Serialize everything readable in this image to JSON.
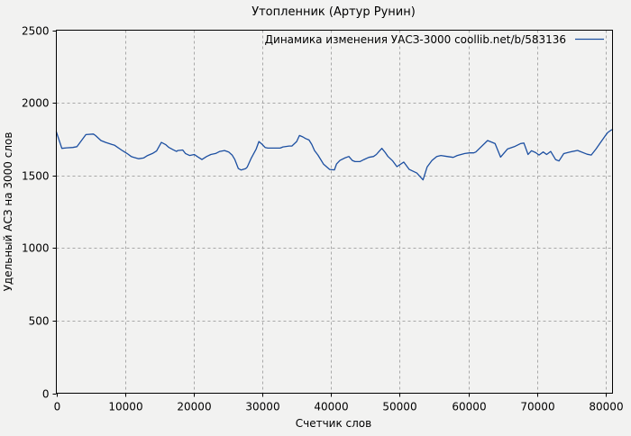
{
  "title": "Утопленник (Артур Рунин)",
  "legend": {
    "label": "Динамика изменения УАСЗ-3000 coollib.net/b/583136",
    "position": "top-right"
  },
  "colors": {
    "line": "#1c4fa1",
    "background": "#f2f2f1",
    "plot_border": "#000000",
    "grid": "#a8a8a8",
    "text": "#000000"
  },
  "chart_data": {
    "type": "line",
    "title": "Утопленник (Артур Рунин)",
    "xlabel": "Счетчик слов",
    "ylabel": "Удельный АСЗ на 3000 слов",
    "xlim": [
      0,
      81000
    ],
    "ylim": [
      0,
      2500
    ],
    "xticks": [
      0,
      10000,
      20000,
      30000,
      40000,
      50000,
      60000,
      70000,
      80000
    ],
    "yticks": [
      0,
      500,
      1000,
      1500,
      2000,
      2500
    ],
    "grid": true,
    "legend_position": "top-right",
    "series": [
      {
        "name": "Динамика изменения УАСЗ-3000 coollib.net/b/583136",
        "color": "#1c4fa1",
        "points": [
          [
            0,
            1800
          ],
          [
            800,
            1686
          ],
          [
            1500,
            1690
          ],
          [
            2400,
            1692
          ],
          [
            3000,
            1698
          ],
          [
            4300,
            1781
          ],
          [
            5400,
            1785
          ],
          [
            5700,
            1775
          ],
          [
            6500,
            1740
          ],
          [
            7200,
            1727
          ],
          [
            8100,
            1713
          ],
          [
            8500,
            1707
          ],
          [
            9600,
            1671
          ],
          [
            10300,
            1651
          ],
          [
            10900,
            1630
          ],
          [
            11300,
            1624
          ],
          [
            12000,
            1615
          ],
          [
            12700,
            1620
          ],
          [
            13300,
            1637
          ],
          [
            14000,
            1651
          ],
          [
            14600,
            1668
          ],
          [
            15300,
            1727
          ],
          [
            15900,
            1713
          ],
          [
            16400,
            1692
          ],
          [
            17000,
            1677
          ],
          [
            17500,
            1665
          ],
          [
            17700,
            1671
          ],
          [
            18400,
            1675
          ],
          [
            18800,
            1651
          ],
          [
            19400,
            1637
          ],
          [
            20100,
            1644
          ],
          [
            20500,
            1630
          ],
          [
            21200,
            1609
          ],
          [
            21900,
            1630
          ],
          [
            22500,
            1644
          ],
          [
            23200,
            1651
          ],
          [
            23800,
            1665
          ],
          [
            24500,
            1671
          ],
          [
            25100,
            1661
          ],
          [
            25600,
            1640
          ],
          [
            26000,
            1609
          ],
          [
            26500,
            1547
          ],
          [
            26900,
            1537
          ],
          [
            27600,
            1547
          ],
          [
            27800,
            1558
          ],
          [
            28400,
            1620
          ],
          [
            29100,
            1682
          ],
          [
            29500,
            1733
          ],
          [
            30000,
            1713
          ],
          [
            30400,
            1692
          ],
          [
            30800,
            1688
          ],
          [
            32600,
            1688
          ],
          [
            33000,
            1696
          ],
          [
            33900,
            1702
          ],
          [
            34300,
            1702
          ],
          [
            35000,
            1733
          ],
          [
            35400,
            1775
          ],
          [
            35900,
            1765
          ],
          [
            36300,
            1754
          ],
          [
            36800,
            1744
          ],
          [
            37200,
            1713
          ],
          [
            37600,
            1671
          ],
          [
            38100,
            1640
          ],
          [
            38500,
            1609
          ],
          [
            38900,
            1578
          ],
          [
            39800,
            1541
          ],
          [
            40500,
            1538
          ],
          [
            40800,
            1578
          ],
          [
            41300,
            1603
          ],
          [
            42000,
            1620
          ],
          [
            42600,
            1630
          ],
          [
            43100,
            1603
          ],
          [
            43500,
            1595
          ],
          [
            44200,
            1595
          ],
          [
            44800,
            1609
          ],
          [
            45500,
            1624
          ],
          [
            46200,
            1630
          ],
          [
            46600,
            1644
          ],
          [
            47000,
            1665
          ],
          [
            47400,
            1686
          ],
          [
            47900,
            1657
          ],
          [
            48300,
            1630
          ],
          [
            49000,
            1599
          ],
          [
            49600,
            1560
          ],
          [
            50600,
            1592
          ],
          [
            51400,
            1541
          ],
          [
            52500,
            1516
          ],
          [
            53400,
            1469
          ],
          [
            54000,
            1558
          ],
          [
            54700,
            1603
          ],
          [
            55400,
            1630
          ],
          [
            56000,
            1637
          ],
          [
            56900,
            1630
          ],
          [
            57800,
            1624
          ],
          [
            58400,
            1637
          ],
          [
            59500,
            1651
          ],
          [
            60200,
            1655
          ],
          [
            60800,
            1655
          ],
          [
            61100,
            1661
          ],
          [
            62800,
            1740
          ],
          [
            63500,
            1727
          ],
          [
            63900,
            1719
          ],
          [
            64700,
            1626
          ],
          [
            65700,
            1682
          ],
          [
            66700,
            1698
          ],
          [
            67600,
            1719
          ],
          [
            68100,
            1723
          ],
          [
            68700,
            1644
          ],
          [
            69200,
            1670
          ],
          [
            69800,
            1657
          ],
          [
            70300,
            1640
          ],
          [
            70900,
            1661
          ],
          [
            71400,
            1644
          ],
          [
            72000,
            1665
          ],
          [
            72700,
            1609
          ],
          [
            73200,
            1599
          ],
          [
            73900,
            1650
          ],
          [
            74800,
            1661
          ],
          [
            75900,
            1672
          ],
          [
            77300,
            1646
          ],
          [
            77900,
            1640
          ],
          [
            78600,
            1682
          ],
          [
            79200,
            1723
          ],
          [
            79900,
            1770
          ],
          [
            80300,
            1795
          ],
          [
            80800,
            1812
          ],
          [
            81000,
            1816
          ]
        ]
      }
    ]
  }
}
